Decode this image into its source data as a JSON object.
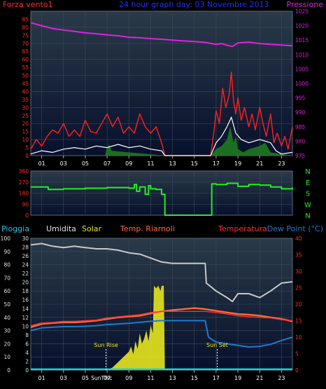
{
  "colors": {
    "bg": "#000000",
    "panel_top": "#2a3a48",
    "panel_bottom": "#07102c",
    "grid": "#3c4a58",
    "wind_gust": "#ff2020",
    "wind_avg": "#ffffff",
    "wind_fill": "#1f7a1f",
    "pressure": "#e020e0",
    "wind_dir": "#22ee22",
    "humidity": "#c8c8c8",
    "solar": "#e6e61e",
    "temp_feel": "#ff6a3a",
    "temperature": "#ff3030",
    "dew_point": "#1e7ad0",
    "rain": "#20d0d0",
    "title": "#2030ff",
    "tick_label": "#ffffff",
    "axis_red": "#ff3030",
    "axis_magenta": "#e020e0",
    "axis_green": "#22ee22",
    "axis_cyan": "#20c8e0",
    "label_white": "#e0e0e0"
  },
  "header": {
    "wind_label": "Forza vento1",
    "title": "24 hour graph day: 03 Novembre 2013",
    "pressure_label": "Pressione"
  },
  "legend_bottom": {
    "rain": "Pioggia",
    "humidity": "Umidita",
    "solar": "Solar",
    "temp_feel": "Temp. Riarnoli",
    "temperature": "Temperatura",
    "dew_point": "Dew Point (°C)"
  },
  "compass": [
    "N",
    "W",
    "S",
    "E",
    "N"
  ],
  "annotations": {
    "sunrise": "Sun Rise",
    "sunset": "Sun Set",
    "bottom_ticks_overlap": "SunTTsc"
  },
  "chart_data": [
    {
      "type": "line",
      "name": "wind_pressure",
      "x_ticks": [
        "01",
        "03",
        "05",
        "07",
        "09",
        "11",
        "13",
        "15",
        "17",
        "19",
        "21",
        "23"
      ],
      "xlim": [
        0,
        24
      ],
      "y_left": {
        "ticks": [
          0,
          5,
          10,
          15,
          20,
          25,
          30,
          35,
          40,
          45,
          50,
          55,
          60,
          65,
          70,
          75,
          80,
          85
        ],
        "lim": [
          0,
          90
        ]
      },
      "y_right": {
        "ticks": [
          975,
          980,
          985,
          990,
          995,
          1000,
          1005,
          1010,
          1015,
          1020,
          1025
        ],
        "lim": [
          975,
          1025
        ]
      },
      "series": [
        {
          "key": "pressure",
          "axis": "right",
          "x": [
            0,
            1,
            2,
            3,
            4,
            5,
            6,
            7,
            8,
            9,
            10,
            11,
            12,
            13,
            14,
            15,
            16,
            17,
            17.5,
            18,
            18.5,
            19,
            20,
            21,
            22,
            23,
            24
          ],
          "y": [
            1021.0,
            1020.0,
            1019.0,
            1018.5,
            1018.0,
            1017.5,
            1017.2,
            1016.8,
            1016.5,
            1016.0,
            1015.8,
            1015.5,
            1015.3,
            1015.0,
            1014.7,
            1014.5,
            1014.2,
            1013.5,
            1013.8,
            1013.2,
            1012.8,
            1014.0,
            1014.3,
            1013.8,
            1013.5,
            1013.3,
            1013.0
          ]
        },
        {
          "key": "wind_gust",
          "axis": "left",
          "x": [
            0,
            0.5,
            1,
            1.5,
            2,
            2.5,
            3,
            3.5,
            4,
            4.5,
            5,
            5.5,
            6,
            6.5,
            7,
            7.5,
            8,
            8.5,
            9,
            9.5,
            10,
            10.5,
            11,
            11.5,
            12,
            12.3,
            16.5,
            16.8,
            17,
            17.3,
            17.6,
            17.9,
            18.2,
            18.4,
            18.6,
            18.8,
            19,
            19.3,
            19.6,
            20,
            20.3,
            20.6,
            21,
            21.3,
            21.6,
            22,
            22.3,
            22.6,
            23,
            23.3,
            23.6,
            24
          ],
          "y": [
            4,
            10,
            6,
            12,
            16,
            14,
            20,
            12,
            16,
            12,
            22,
            15,
            14,
            20,
            26,
            18,
            24,
            14,
            18,
            14,
            26,
            18,
            14,
            18,
            8,
            0,
            0,
            15,
            28,
            20,
            42,
            30,
            38,
            52,
            34,
            26,
            36,
            22,
            30,
            18,
            26,
            16,
            30,
            20,
            12,
            26,
            8,
            14,
            6,
            12,
            4,
            18
          ]
        },
        {
          "key": "wind_avg",
          "axis": "left",
          "x": [
            0,
            1,
            2,
            3,
            4,
            5,
            6,
            7,
            8,
            9,
            10,
            11,
            12,
            12.3,
            16.5,
            17,
            17.5,
            18,
            18.4,
            18.8,
            19.3,
            20,
            21,
            22,
            22.5,
            23,
            24
          ],
          "y": [
            1,
            3,
            2,
            4,
            5,
            4,
            6,
            5,
            7,
            5,
            6,
            4,
            3,
            0,
            0,
            8,
            12,
            18,
            24,
            14,
            10,
            8,
            10,
            8,
            3,
            1,
            2
          ]
        },
        {
          "key": "wind_fill",
          "axis": "left",
          "x": [
            0,
            6.8,
            7,
            7.2,
            7.4,
            12.3,
            16.5,
            17,
            17.5,
            18,
            18.3,
            18.6,
            18.8,
            19,
            19.5,
            20,
            21,
            21.5,
            22,
            24
          ],
          "y": [
            0,
            0,
            5,
            7,
            3,
            0,
            0,
            4,
            6,
            10,
            18,
            8,
            12,
            4,
            2,
            4,
            6,
            8,
            2,
            0
          ]
        }
      ]
    },
    {
      "type": "line",
      "name": "wind_direction",
      "xlim": [
        0,
        24
      ],
      "y_left": {
        "ticks": [
          0,
          90,
          180,
          270,
          360
        ],
        "lim": [
          0,
          360
        ]
      },
      "series": [
        {
          "key": "wind_dir",
          "x": [
            0,
            1.5,
            1.6,
            3,
            5,
            7,
            9,
            9.5,
            9.7,
            10,
            10.5,
            10.8,
            11,
            11.5,
            12,
            12.3,
            16.5,
            16.6,
            17,
            18,
            19,
            20,
            21,
            22,
            23,
            24
          ],
          "y": [
            230,
            230,
            210,
            215,
            220,
            225,
            220,
            250,
            195,
            230,
            170,
            240,
            215,
            210,
            170,
            0,
            0,
            255,
            250,
            260,
            235,
            250,
            245,
            230,
            215,
            225
          ]
        }
      ]
    },
    {
      "type": "line",
      "name": "temp_humidity_solar",
      "xlim": [
        0,
        24
      ],
      "y_far_left": {
        "ticks": [
          0,
          10,
          20,
          30,
          40,
          50,
          60,
          70,
          80,
          90,
          100
        ],
        "lim": [
          0,
          100
        ]
      },
      "y_left": {
        "ticks": [
          0,
          2,
          4,
          6,
          8,
          10,
          12,
          14,
          16,
          18,
          20,
          22,
          24,
          26,
          28,
          30
        ],
        "lim": [
          0,
          30
        ]
      },
      "y_right": {
        "ticks": [
          0,
          5,
          10,
          15,
          20,
          25,
          30,
          35,
          40
        ],
        "lim": [
          0,
          40
        ]
      },
      "series": [
        {
          "key": "humidity",
          "axis": "far_left",
          "x": [
            0,
            1,
            2,
            3,
            4,
            5,
            6,
            7,
            8,
            9,
            10,
            11,
            12,
            13,
            14,
            15,
            16,
            16.1,
            17,
            18,
            18.5,
            19,
            20,
            21,
            22,
            23,
            24
          ],
          "y": [
            95,
            96,
            94,
            93,
            94,
            93,
            92,
            92,
            91,
            89,
            88,
            85,
            82,
            81,
            81,
            81,
            81,
            66,
            60,
            55,
            52,
            58,
            58,
            55,
            60,
            66,
            67
          ]
        },
        {
          "key": "temp_feel",
          "axis": "right",
          "x": [
            0,
            1,
            2,
            3,
            4,
            5,
            6,
            7,
            8,
            9,
            10,
            11,
            12,
            13,
            14,
            15,
            16,
            17,
            18,
            19,
            20,
            21,
            22,
            23,
            24
          ],
          "y": [
            13.0,
            14.0,
            14.3,
            14.5,
            14.5,
            14.7,
            15.0,
            15.5,
            16.0,
            16.3,
            16.5,
            17.2,
            17.8,
            18.2,
            18.5,
            18.8,
            18.5,
            18.0,
            17.5,
            17.0,
            16.8,
            16.5,
            16.0,
            15.5,
            14.8
          ]
        },
        {
          "key": "temperature",
          "axis": "right",
          "x": [
            0,
            1,
            2,
            3,
            4,
            5,
            6,
            7,
            8,
            9,
            10,
            11,
            12,
            13,
            14,
            15,
            16,
            17,
            18,
            19,
            20,
            21,
            22,
            23,
            24
          ],
          "y": [
            13.5,
            14.3,
            14.5,
            14.8,
            14.8,
            15.0,
            15.2,
            15.8,
            16.2,
            16.5,
            16.8,
            17.5,
            17.8,
            17.8,
            17.8,
            17.8,
            17.8,
            17.5,
            17.0,
            16.5,
            16.2,
            16.0,
            15.8,
            15.3,
            15.0
          ]
        },
        {
          "key": "dew_point",
          "axis": "right",
          "x": [
            0,
            1,
            2,
            3,
            4,
            5,
            6,
            7,
            8,
            9,
            10,
            11,
            12,
            13,
            14,
            15,
            16,
            16.3,
            17,
            18,
            19,
            20,
            21,
            22,
            23,
            24
          ],
          "y": [
            12.0,
            12.8,
            13.0,
            13.2,
            13.2,
            13.3,
            13.5,
            13.8,
            14.0,
            14.2,
            14.5,
            14.8,
            15.0,
            15.0,
            15.0,
            15.0,
            15.0,
            10.0,
            8.5,
            8.0,
            7.5,
            7.0,
            7.2,
            7.8,
            9.0,
            10.0
          ]
        },
        {
          "key": "solar",
          "axis": "far_left",
          "x": [
            7.0,
            7.5,
            8,
            8.5,
            9,
            9.2,
            9.4,
            9.6,
            9.8,
            10,
            10.2,
            10.4,
            10.6,
            10.8,
            11,
            11.2,
            11.3,
            11.5,
            11.7,
            11.9,
            12,
            12.2,
            12.3
          ],
          "y": [
            0,
            2,
            6,
            10,
            14,
            18,
            12,
            22,
            16,
            28,
            20,
            24,
            30,
            22,
            34,
            28,
            64,
            62,
            64,
            60,
            64,
            64,
            0
          ]
        },
        {
          "key": "rain",
          "axis": "far_left",
          "x": [
            0,
            24
          ],
          "y": [
            0.6,
            0.6
          ]
        }
      ],
      "markers": [
        {
          "label": "Sun Rise",
          "x": 6.9
        },
        {
          "label": "Sun Set",
          "x": 17.1
        }
      ]
    }
  ]
}
